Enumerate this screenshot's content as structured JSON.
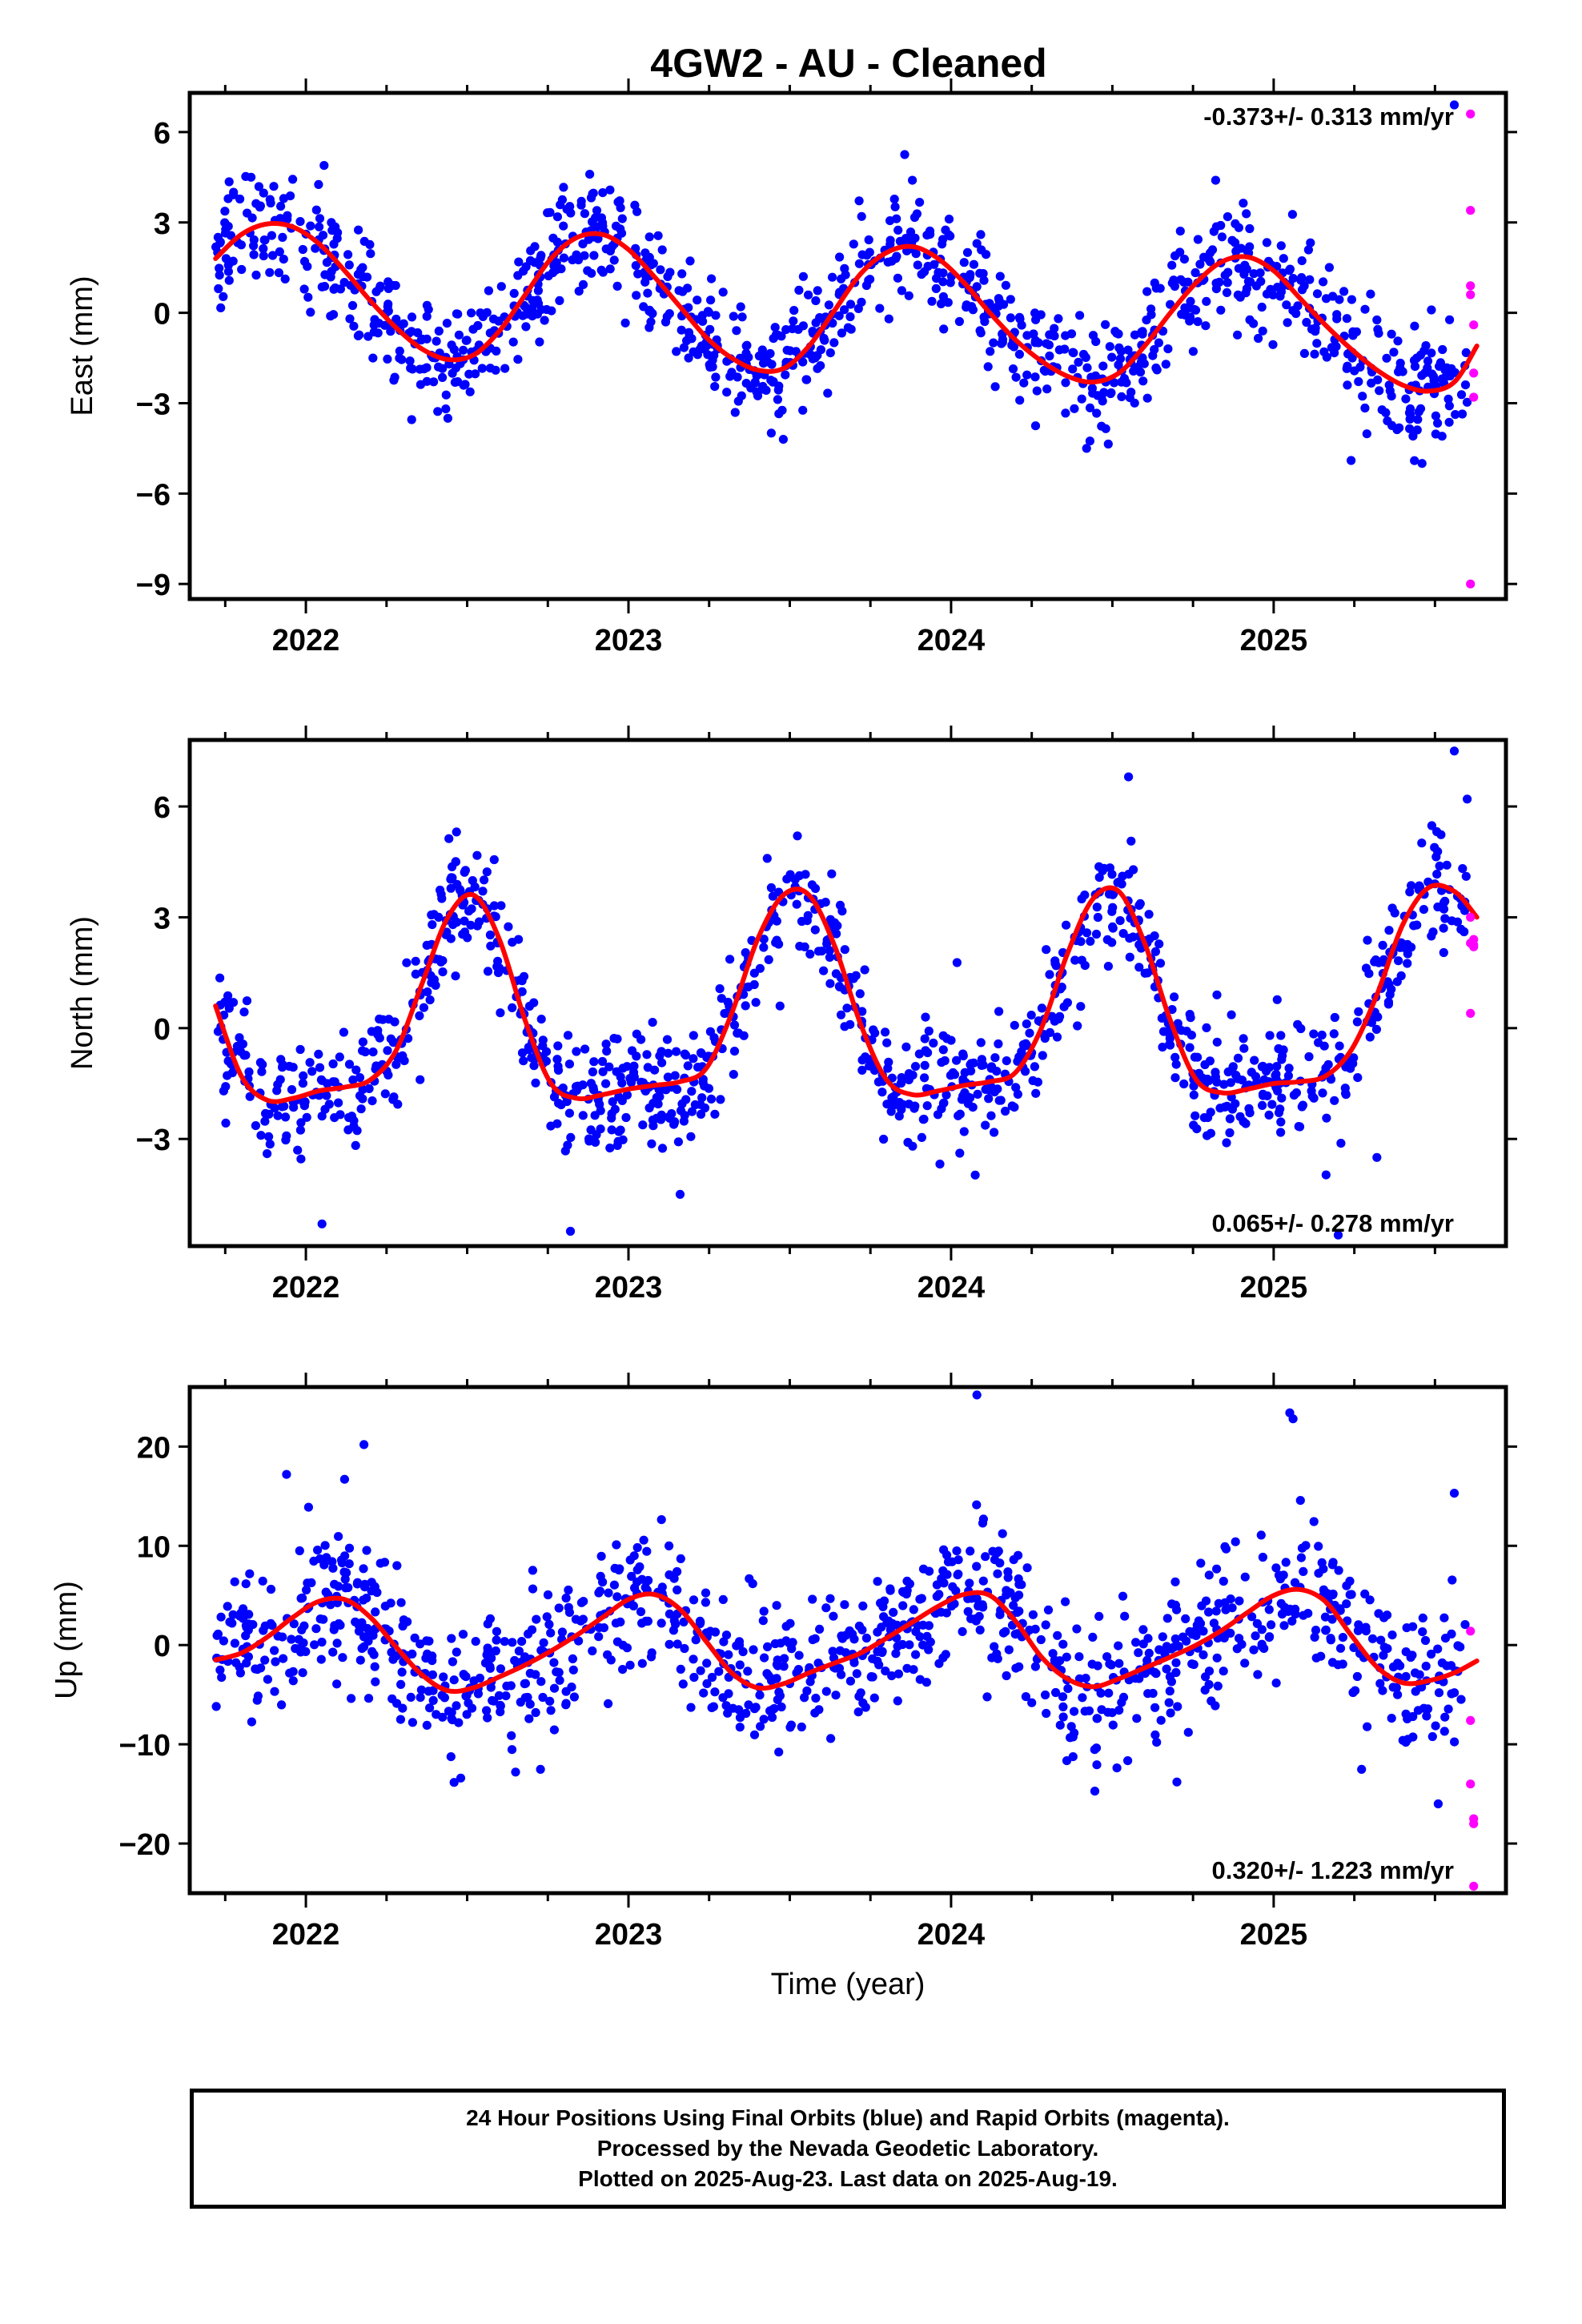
{
  "title": "4GW2  - AU - Cleaned",
  "xlabel": "Time (year)",
  "footer": {
    "line1": "24 Hour Positions Using Final Orbits (blue) and Rapid Orbits (magenta).",
    "line2": "Processed by the Nevada Geodetic Laboratory.",
    "line3": "Plotted on 2025-Aug-23. Last data on 2025-Aug-19."
  },
  "colors": {
    "final_orbits": "#0000ff",
    "rapid_orbits": "#ff00ff",
    "model_fit": "#ff0000",
    "frame": "#000000"
  },
  "chart_data": [
    {
      "type": "scatter",
      "panel": "east",
      "ylabel": "East (mm)",
      "rate_label": "-0.373+/- 0.313 mm/yr",
      "xlim": [
        2021.64,
        2025.72
      ],
      "ylim": [
        -9.5,
        7.3
      ],
      "yticks": [
        6,
        3,
        0,
        -3,
        -6,
        -9
      ],
      "ytick_labels": [
        "6",
        "3",
        "0",
        "−3",
        "−6",
        "−9"
      ],
      "xticks": [
        2022,
        2023,
        2024,
        2025
      ],
      "xtick_labels": [
        "2022",
        "2023",
        "2024",
        "2025"
      ],
      "series": [
        {
          "role": "model",
          "x": [
            2021.72,
            2021.8,
            2021.88,
            2021.96,
            2022.04,
            2022.12,
            2022.2,
            2022.28,
            2022.36,
            2022.44,
            2022.52,
            2022.6,
            2022.68,
            2022.76,
            2022.84,
            2022.92,
            2023.0,
            2023.08,
            2023.16,
            2023.24,
            2023.32,
            2023.4,
            2023.48,
            2023.56,
            2023.64,
            2023.72,
            2023.8,
            2023.88,
            2023.96,
            2024.04,
            2024.12,
            2024.2,
            2024.28,
            2024.36,
            2024.44,
            2024.52,
            2024.6,
            2024.68,
            2024.76,
            2024.84,
            2024.92,
            2025.0,
            2025.08,
            2025.16,
            2025.24,
            2025.32,
            2025.4,
            2025.48,
            2025.56,
            2025.63
          ],
          "y": [
            1.8,
            2.6,
            2.95,
            2.85,
            2.3,
            1.4,
            0.4,
            -0.5,
            -1.2,
            -1.55,
            -1.4,
            -0.6,
            0.6,
            1.8,
            2.5,
            2.6,
            2.1,
            1.2,
            0.2,
            -0.8,
            -1.5,
            -1.9,
            -1.85,
            -1.1,
            0.1,
            1.3,
            2.0,
            2.2,
            1.8,
            1.0,
            0.0,
            -0.9,
            -1.6,
            -2.1,
            -2.3,
            -2.0,
            -1.1,
            0.0,
            1.0,
            1.7,
            1.85,
            1.4,
            0.5,
            -0.4,
            -1.2,
            -1.9,
            -2.4,
            -2.6,
            -2.3,
            -1.1
          ]
        },
        {
          "role": "rapid",
          "x": [
            2025.61,
            2025.61,
            2025.61,
            2025.62,
            2025.62,
            2025.62,
            2025.61,
            2025.61
          ],
          "y": [
            6.6,
            3.4,
            0.9,
            -0.4,
            -2.0,
            -2.8,
            0.6,
            -9.0
          ]
        },
        {
          "role": "final",
          "generated": true,
          "seed": 20250823,
          "x_start": 2021.72,
          "x_end": 2025.6,
          "count": 1100,
          "noise_sd": 0.95,
          "points": [
            [
              2025.56,
              6.9
            ],
            [
              2022.88,
              4.6
            ],
            [
              2021.83,
              4.5
            ],
            [
              2023.88,
              4.4
            ],
            [
              2024.82,
              4.4
            ],
            [
              2025.46,
              -5.0
            ],
            [
              2025.24,
              -4.9
            ],
            [
              2024.42,
              -4.5
            ],
            [
              2023.48,
              -4.2
            ],
            [
              2022.44,
              -3.5
            ]
          ]
        }
      ]
    },
    {
      "type": "scatter",
      "panel": "north",
      "ylabel": "North (mm)",
      "rate_label": "0.065+/- 0.278 mm/yr",
      "xlim": [
        2021.64,
        2025.72
      ],
      "ylim": [
        -5.9,
        7.8
      ],
      "yticks": [
        6,
        3,
        0,
        -3
      ],
      "ytick_labels": [
        "6",
        "3",
        "0",
        "−3"
      ],
      "xticks": [
        2022,
        2023,
        2024,
        2025
      ],
      "xtick_labels": [
        "2022",
        "2023",
        "2024",
        "2025"
      ],
      "series": [
        {
          "role": "model",
          "x": [
            2021.72,
            2021.8,
            2021.88,
            2021.96,
            2022.04,
            2022.12,
            2022.2,
            2022.28,
            2022.36,
            2022.44,
            2022.52,
            2022.6,
            2022.68,
            2022.76,
            2022.84,
            2022.92,
            2023.0,
            2023.08,
            2023.16,
            2023.24,
            2023.32,
            2023.4,
            2023.48,
            2023.56,
            2023.64,
            2023.72,
            2023.8,
            2023.88,
            2023.96,
            2024.04,
            2024.12,
            2024.2,
            2024.28,
            2024.36,
            2024.44,
            2024.52,
            2024.6,
            2024.68,
            2024.76,
            2024.84,
            2024.92,
            2025.0,
            2025.08,
            2025.16,
            2025.24,
            2025.32,
            2025.4,
            2025.48,
            2025.56,
            2025.63
          ],
          "y": [
            0.6,
            -1.3,
            -1.95,
            -1.9,
            -1.7,
            -1.6,
            -1.4,
            -0.6,
            1.2,
            3.0,
            3.6,
            2.4,
            0.2,
            -1.5,
            -1.9,
            -1.8,
            -1.65,
            -1.55,
            -1.45,
            -1.1,
            0.4,
            2.4,
            3.6,
            3.6,
            2.2,
            0.1,
            -1.4,
            -1.8,
            -1.7,
            -1.55,
            -1.45,
            -1.2,
            0.0,
            2.0,
            3.5,
            3.7,
            2.3,
            0.2,
            -1.4,
            -1.75,
            -1.65,
            -1.5,
            -1.45,
            -1.3,
            -0.6,
            0.9,
            2.8,
            3.8,
            3.7,
            3.0
          ]
        },
        {
          "role": "rapid",
          "x": [
            2025.61,
            2025.62,
            2025.61,
            2025.62,
            2025.61,
            2025.62
          ],
          "y": [
            3.0,
            2.4,
            2.3,
            2.2,
            0.4,
            2.25
          ]
        },
        {
          "role": "final",
          "generated": true,
          "seed": 19760101,
          "x_start": 2021.72,
          "x_end": 2025.6,
          "count": 1100,
          "noise_sd": 0.8,
          "points": [
            [
              2025.56,
              7.5
            ],
            [
              2024.55,
              6.8
            ],
            [
              2025.6,
              6.2
            ],
            [
              2022.82,
              -5.5
            ],
            [
              2022.05,
              -5.3
            ],
            [
              2025.2,
              -5.6
            ],
            [
              2023.16,
              -4.5
            ],
            [
              2025.32,
              -3.5
            ]
          ]
        }
      ]
    },
    {
      "type": "scatter",
      "panel": "up",
      "ylabel": "Up (mm)",
      "rate_label": "0.320+/- 1.223 mm/yr",
      "xlabel": "Time (year)",
      "xlim": [
        2021.64,
        2025.72
      ],
      "ylim": [
        -25.0,
        26.0
      ],
      "yticks": [
        20,
        10,
        0,
        -10,
        -20
      ],
      "ytick_labels": [
        "20",
        "10",
        "0",
        "−10",
        "−20"
      ],
      "xticks": [
        2022,
        2023,
        2024,
        2025
      ],
      "xtick_labels": [
        "2022",
        "2023",
        "2024",
        "2025"
      ],
      "series": [
        {
          "role": "model",
          "x": [
            2021.72,
            2021.8,
            2021.88,
            2021.96,
            2022.04,
            2022.12,
            2022.2,
            2022.28,
            2022.36,
            2022.44,
            2022.52,
            2022.6,
            2022.68,
            2022.76,
            2022.84,
            2022.92,
            2023.0,
            2023.08,
            2023.16,
            2023.24,
            2023.32,
            2023.4,
            2023.48,
            2023.56,
            2023.64,
            2023.72,
            2023.8,
            2023.88,
            2023.96,
            2024.04,
            2024.12,
            2024.2,
            2024.28,
            2024.36,
            2024.44,
            2024.52,
            2024.6,
            2024.68,
            2024.76,
            2024.84,
            2024.92,
            2025.0,
            2025.08,
            2025.16,
            2025.24,
            2025.32,
            2025.4,
            2025.48,
            2025.56,
            2025.63
          ],
          "y": [
            -1.5,
            -0.8,
            0.8,
            2.8,
            4.4,
            4.6,
            2.8,
            -0.2,
            -3.0,
            -4.6,
            -4.3,
            -3.2,
            -2.0,
            -0.6,
            1.0,
            2.8,
            4.6,
            5.1,
            3.6,
            0.4,
            -2.8,
            -4.3,
            -3.9,
            -2.8,
            -1.8,
            -0.8,
            0.7,
            2.3,
            3.9,
            5.1,
            5.0,
            2.4,
            -1.2,
            -3.4,
            -4.2,
            -3.4,
            -2.3,
            -1.2,
            0.0,
            1.5,
            3.3,
            5.0,
            5.6,
            4.4,
            1.0,
            -2.2,
            -3.8,
            -3.6,
            -2.8,
            -1.6
          ]
        },
        {
          "role": "rapid",
          "x": [
            2025.61,
            2025.61,
            2025.61,
            2025.62,
            2025.62,
            2025.62
          ],
          "y": [
            1.4,
            -7.6,
            -14.0,
            -17.5,
            -18.0,
            -24.3
          ]
        },
        {
          "role": "final",
          "generated": true,
          "seed": 42424242,
          "x_start": 2021.72,
          "x_end": 2025.6,
          "count": 1100,
          "noise_sd": 3.7,
          "points": [
            [
              2024.08,
              25.2
            ],
            [
              2025.05,
              23.4
            ],
            [
              2025.06,
              22.8
            ],
            [
              2022.18,
              20.2
            ],
            [
              2021.94,
              17.2
            ],
            [
              2022.12,
              16.7
            ],
            [
              2025.56,
              15.3
            ],
            [
              2025.51,
              -16.0
            ],
            [
              2022.48,
              -13.4
            ],
            [
              2024.7,
              -13.8
            ],
            [
              2022.65,
              -12.8
            ]
          ]
        }
      ]
    }
  ]
}
